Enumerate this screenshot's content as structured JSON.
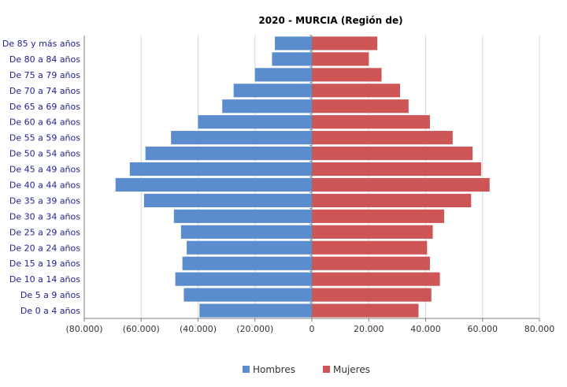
{
  "chart_data": {
    "type": "bar",
    "orientation": "horizontal",
    "title": "2020 - MURCIA (Región de)",
    "categories": [
      "De 85 y más años",
      "De 80 a 84 años",
      "De 75 a 79 años",
      "De 70 a 74 años",
      "De 65 a 69 años",
      "De 60 a 64 años",
      "De 55 a 59 años",
      "De 50 a 54 años",
      "De 45 a 49 años",
      "De 40 a 44 años",
      "De 35 a 39 años",
      "De 30 a 34 años",
      "De 25 a 29 años",
      "De 20 a 24 años",
      "De 15 a 19 años",
      "De 10 a 14 años",
      "De 5 a 9 años",
      "De 0 a 4 años"
    ],
    "series": [
      {
        "name": "Hombres",
        "color": "#5b8ccd",
        "values": [
          -13000,
          -14000,
          -20000,
          -27500,
          -31500,
          -40000,
          -49500,
          -58500,
          -64000,
          -69000,
          -59000,
          -48500,
          -46000,
          -44000,
          -45500,
          -48000,
          -45000,
          -39500
        ]
      },
      {
        "name": "Mujeres",
        "color": "#cd5555",
        "values": [
          23000,
          20000,
          24500,
          31000,
          34000,
          41500,
          49500,
          56500,
          59500,
          62500,
          56000,
          46500,
          42500,
          40500,
          41500,
          45000,
          42000,
          37500
        ]
      }
    ],
    "xlim": [
      -80000,
      80000
    ],
    "xticks": [
      -80000,
      -60000,
      -40000,
      -20000,
      0,
      20000,
      40000,
      60000,
      80000
    ],
    "xtick_labels": [
      "(80.000)",
      "(60.000)",
      "(40.000)",
      "(20.000)",
      "0",
      "20.000",
      "40.000",
      "60.000",
      "80.000"
    ],
    "grid": true,
    "legend_position": "bottom"
  }
}
